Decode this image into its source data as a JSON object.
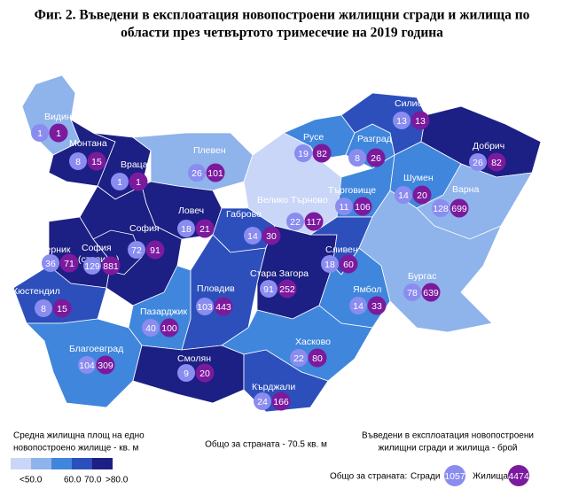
{
  "title": [
    "Фиг. 2. Въведени в експлоатация новопостроени жилищни сгради и жилища по",
    "области през четвъртото тримесечие на 2019 година"
  ],
  "building_color": "#8a8cf0",
  "dwelling_color": "#7c1a9e",
  "regions": [
    {
      "name": "Видин",
      "buildings": 1,
      "dwellings": 1,
      "color": "#8fb3eb"
    },
    {
      "name": "Монтана",
      "buildings": 8,
      "dwellings": 15,
      "color": "#1c1f83"
    },
    {
      "name": "Враца",
      "buildings": 1,
      "dwellings": 1,
      "color": "#1c1f83"
    },
    {
      "name": "Плевен",
      "buildings": 26,
      "dwellings": 101,
      "color": "#8fb3eb"
    },
    {
      "name": "Велико Търново",
      "buildings": 22,
      "dwellings": 117,
      "color": "#c9d6f7"
    },
    {
      "name": "Русе",
      "buildings": 19,
      "dwellings": 82,
      "color": "#3f86dc"
    },
    {
      "name": "Разград",
      "buildings": 8,
      "dwellings": 26,
      "color": "#3f86dc"
    },
    {
      "name": "Силистра",
      "buildings": 13,
      "dwellings": 13,
      "color": "#2d4fbc"
    },
    {
      "name": "Добрич",
      "buildings": 26,
      "dwellings": 82,
      "color": "#1c1f83"
    },
    {
      "name": "Търговище",
      "buildings": 11,
      "dwellings": 106,
      "color": "#3f86dc"
    },
    {
      "name": "Шумен",
      "buildings": 14,
      "dwellings": 20,
      "color": "#3f86dc"
    },
    {
      "name": "Варна",
      "buildings": 128,
      "dwellings": 699,
      "color": "#8fb3eb"
    },
    {
      "name": "Ловеч",
      "buildings": 18,
      "dwellings": 21,
      "color": "#1c1f83"
    },
    {
      "name": "Габрово",
      "buildings": 14,
      "dwellings": 30,
      "color": "#2d4fbc"
    },
    {
      "name": "София",
      "buildings": 72,
      "dwellings": 91,
      "color": "#1c1f83"
    },
    {
      "name": "София",
      "note": "(столица)",
      "buildings": 129,
      "dwellings": 881,
      "color": "#1c1f83"
    },
    {
      "name": "Перник",
      "buildings": 36,
      "dwellings": 71,
      "color": "#1c1f83"
    },
    {
      "name": "Кюстендил",
      "buildings": 8,
      "dwellings": 15,
      "color": "#2d4fbc"
    },
    {
      "name": "Пазарджик",
      "buildings": 40,
      "dwellings": 100,
      "color": "#3f86dc"
    },
    {
      "name": "Пловдив",
      "buildings": 103,
      "dwellings": 443,
      "color": "#2d4fbc"
    },
    {
      "name": "Стара Загора",
      "buildings": 91,
      "dwellings": 252,
      "color": "#1c1f83"
    },
    {
      "name": "Сливен",
      "buildings": 18,
      "dwellings": 60,
      "color": "#2d4fbc"
    },
    {
      "name": "Ямбол",
      "buildings": 14,
      "dwellings": 33,
      "color": "#3f86dc"
    },
    {
      "name": "Бургас",
      "buildings": 78,
      "dwellings": 639,
      "color": "#8fb3eb"
    },
    {
      "name": "Благоевград",
      "buildings": 104,
      "dwellings": 309,
      "color": "#3f86dc"
    },
    {
      "name": "Смолян",
      "buildings": 9,
      "dwellings": 20,
      "color": "#1c1f83"
    },
    {
      "name": "Хасково",
      "buildings": 22,
      "dwellings": 80,
      "color": "#3f86dc"
    },
    {
      "name": "Кърджали",
      "buildings": 24,
      "dwellings": 166,
      "color": "#2d4fbc"
    }
  ],
  "legend": {
    "area_title": [
      "Средна жилищна площ на едно",
      "новопостроено жилище - кв. м"
    ],
    "colors": [
      "#c9d6f7",
      "#8fb3eb",
      "#3f86dc",
      "#2d4fbc",
      "#1c1f83"
    ],
    "labels": [
      "<50.0",
      "60.0",
      "70.0",
      ">80.0"
    ],
    "area_total": "Общо за страната - 70.5 кв. м",
    "count_title": [
      "Въведени в експлоатация новопостроени",
      "жилищни сгради и жилища - брой"
    ],
    "total_label": "Общо за страната:",
    "buildings_label": "Сгради",
    "buildings_total": 1057,
    "dwellings_label": "Жилища",
    "dwellings_total": 4474
  }
}
